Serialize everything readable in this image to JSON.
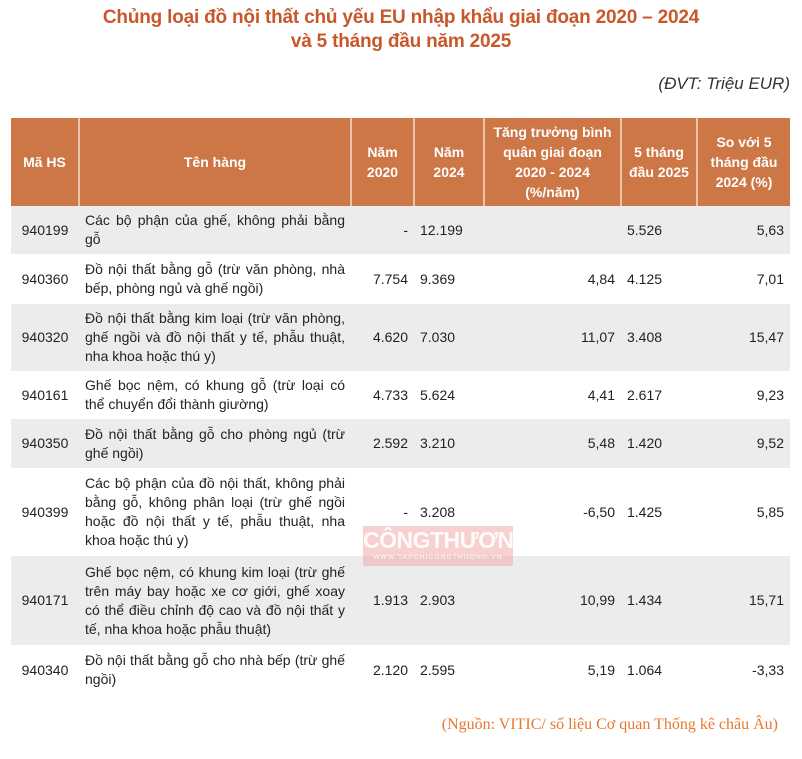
{
  "title": {
    "line1": "Chủng loại đồ nội thất chủ yếu EU nhập khẩu giai đoạn 2020 – 2024",
    "line2": "và 5 tháng đầu năm 2025"
  },
  "unit_note": "(ĐVT: Triệu EUR)",
  "colors": {
    "title": "#c8582a",
    "header_bg": "#cd7646",
    "row_alt_bg": "#ececec",
    "source": "#e8782e"
  },
  "table": {
    "headers": [
      "Mã HS",
      "Tên hàng",
      "Năm 2020",
      "Năm 2024",
      "Tăng trưởng bình quân giai đoạn 2020 - 2024 (%/năm)",
      "5 tháng đầu 2025",
      "So với 5 tháng đầu 2024 (%)"
    ],
    "rows": [
      {
        "hs": "940199",
        "name": "Các bộ phận của ghế, không phải bằng gỗ",
        "y2020": "-",
        "y2024": "12.199",
        "growth": "",
        "m5_2025": "5.526",
        "vs_2024": "5,63"
      },
      {
        "hs": "940360",
        "name": "Đồ nội thất bằng gỗ (trừ văn phòng, nhà bếp, phòng ngủ và ghế ngồi)",
        "y2020": "7.754",
        "y2024": "9.369",
        "growth": "4,84",
        "m5_2025": "4.125",
        "vs_2024": "7,01"
      },
      {
        "hs": "940320",
        "name": "Đồ nội thất bằng kim loại (trừ văn phòng, ghế ngồi và đồ nội thất y tế, phẫu thuật, nha khoa hoặc thú y)",
        "y2020": "4.620",
        "y2024": "7.030",
        "growth": "11,07",
        "m5_2025": "3.408",
        "vs_2024": "15,47"
      },
      {
        "hs": "940161",
        "name": "Ghế bọc nệm, có khung gỗ (trừ loại có thể chuyển đổi thành giường)",
        "y2020": "4.733",
        "y2024": "5.624",
        "growth": "4,41",
        "m5_2025": "2.617",
        "vs_2024": "9,23"
      },
      {
        "hs": "940350",
        "name": "Đồ nội thất bằng gỗ cho phòng ngủ (trừ ghế ngồi)",
        "y2020": "2.592",
        "y2024": "3.210",
        "growth": "5,48",
        "m5_2025": "1.420",
        "vs_2024": "9,52"
      },
      {
        "hs": "940399",
        "name": "Các bộ phận của đồ nội thất, không phải bằng gỗ, không phân loại (trừ ghế ngồi hoặc đồ nội thất y tế, phẫu thuật, nha khoa hoặc thú y)",
        "y2020": "-",
        "y2024": "3.208",
        "growth": "-6,50",
        "m5_2025": "1.425",
        "vs_2024": "5,85"
      },
      {
        "hs": "940171",
        "name": "Ghế bọc nệm, có khung kim loại (trừ ghế trên máy bay hoặc xe cơ giới, ghế xoay có thể điều chỉnh độ cao và đồ nội thất y tế, nha khoa hoặc phẫu thuật)",
        "y2020": "1.913",
        "y2024": "2.903",
        "growth": "10,99",
        "m5_2025": "1.434",
        "vs_2024": "15,71"
      },
      {
        "hs": "940340",
        "name": "Đồ nội thất bằng gỗ cho nhà bếp (trừ ghế ngồi)",
        "y2020": "2.120",
        "y2024": "2.595",
        "growth": "5,19",
        "m5_2025": "1.064",
        "vs_2024": "-3,33"
      }
    ]
  },
  "watermark": {
    "brand": "CÔNGTHƯƠNG",
    "url": "WWW.TAPCHICONGTHUONG.VN"
  },
  "source_note": "(Nguồn: VITIC/ số liệu Cơ quan Thống kê châu Âu)"
}
